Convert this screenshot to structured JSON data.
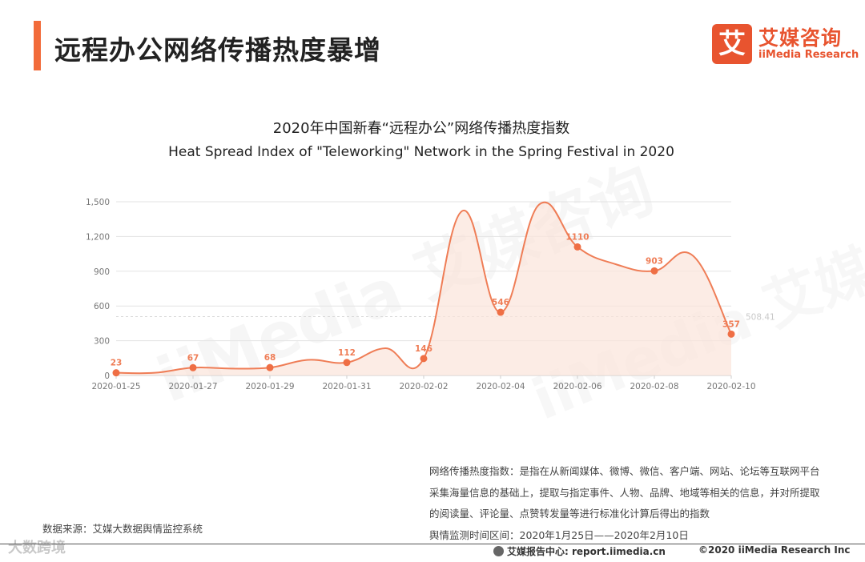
{
  "header": {
    "title": "远程办公网络传播热度暴增",
    "logo_mark": "艾",
    "logo_cn": "艾媒咨询",
    "logo_en": "iiMedia Research"
  },
  "chart_data": {
    "type": "area",
    "title": "2020年中国新春“远程办公”网络传播热度指数",
    "subtitle": "Heat Spread Index of \"Teleworking\" Network in the Spring Festival in 2020",
    "xlabel": "",
    "ylabel": "",
    "x": [
      "2020-01-25",
      "2020-01-26",
      "2020-01-27",
      "2020-01-28",
      "2020-01-29",
      "2020-01-30",
      "2020-01-31",
      "2020-02-01",
      "2020-02-02",
      "2020-02-03",
      "2020-02-04",
      "2020-02-05",
      "2020-02-06",
      "2020-02-07",
      "2020-02-08",
      "2020-02-09",
      "2020-02-10"
    ],
    "values": [
      23,
      23,
      67,
      60,
      68,
      135,
      112,
      235,
      146,
      1420,
      546,
      1475,
      1110,
      960,
      903,
      1035,
      357
    ],
    "labeled_indices": [
      0,
      2,
      4,
      6,
      8,
      10,
      12,
      14,
      16
    ],
    "x_ticks": [
      "2020-01-25",
      "2020-01-27",
      "2020-01-29",
      "2020-01-31",
      "2020-02-02",
      "2020-02-04",
      "2020-02-06",
      "2020-02-08",
      "2020-02-10"
    ],
    "y_ticks": [
      "0",
      "300",
      "600",
      "900",
      "1,200",
      "1,500"
    ],
    "ylim": [
      0,
      1500
    ],
    "grid": true,
    "reference_value": 508.41,
    "reference_label": "508.41",
    "colors": {
      "line": "#ef7d56",
      "fill": "#fbe4da",
      "marker": "#ef6f45",
      "label": "#ef7d56",
      "grid": "#e3e3e3"
    }
  },
  "note": {
    "line1": "网络传播热度指数：是指在从新闻媒体、微博、微信、客户端、网站、论坛等互联网平台",
    "line2": "采集海量信息的基础上，提取与指定事件、人物、品牌、地域等相关的信息，并对所提取",
    "line3": "的阅读量、评论量、点赞转发量等进行标准化计算后得出的指数",
    "line4": "舆情监测时间区间：2020年1月25日——2020年2月10日"
  },
  "source": "数据来源：艾媒大数据舆情监控系统",
  "watermarks": {
    "chart": "iiMedia 艾媒咨询",
    "bottom": "大数跨境"
  },
  "footer": {
    "center": "艾媒报告中心: report.iimedia.cn",
    "right": "©2020  iiMedia Research Inc"
  }
}
